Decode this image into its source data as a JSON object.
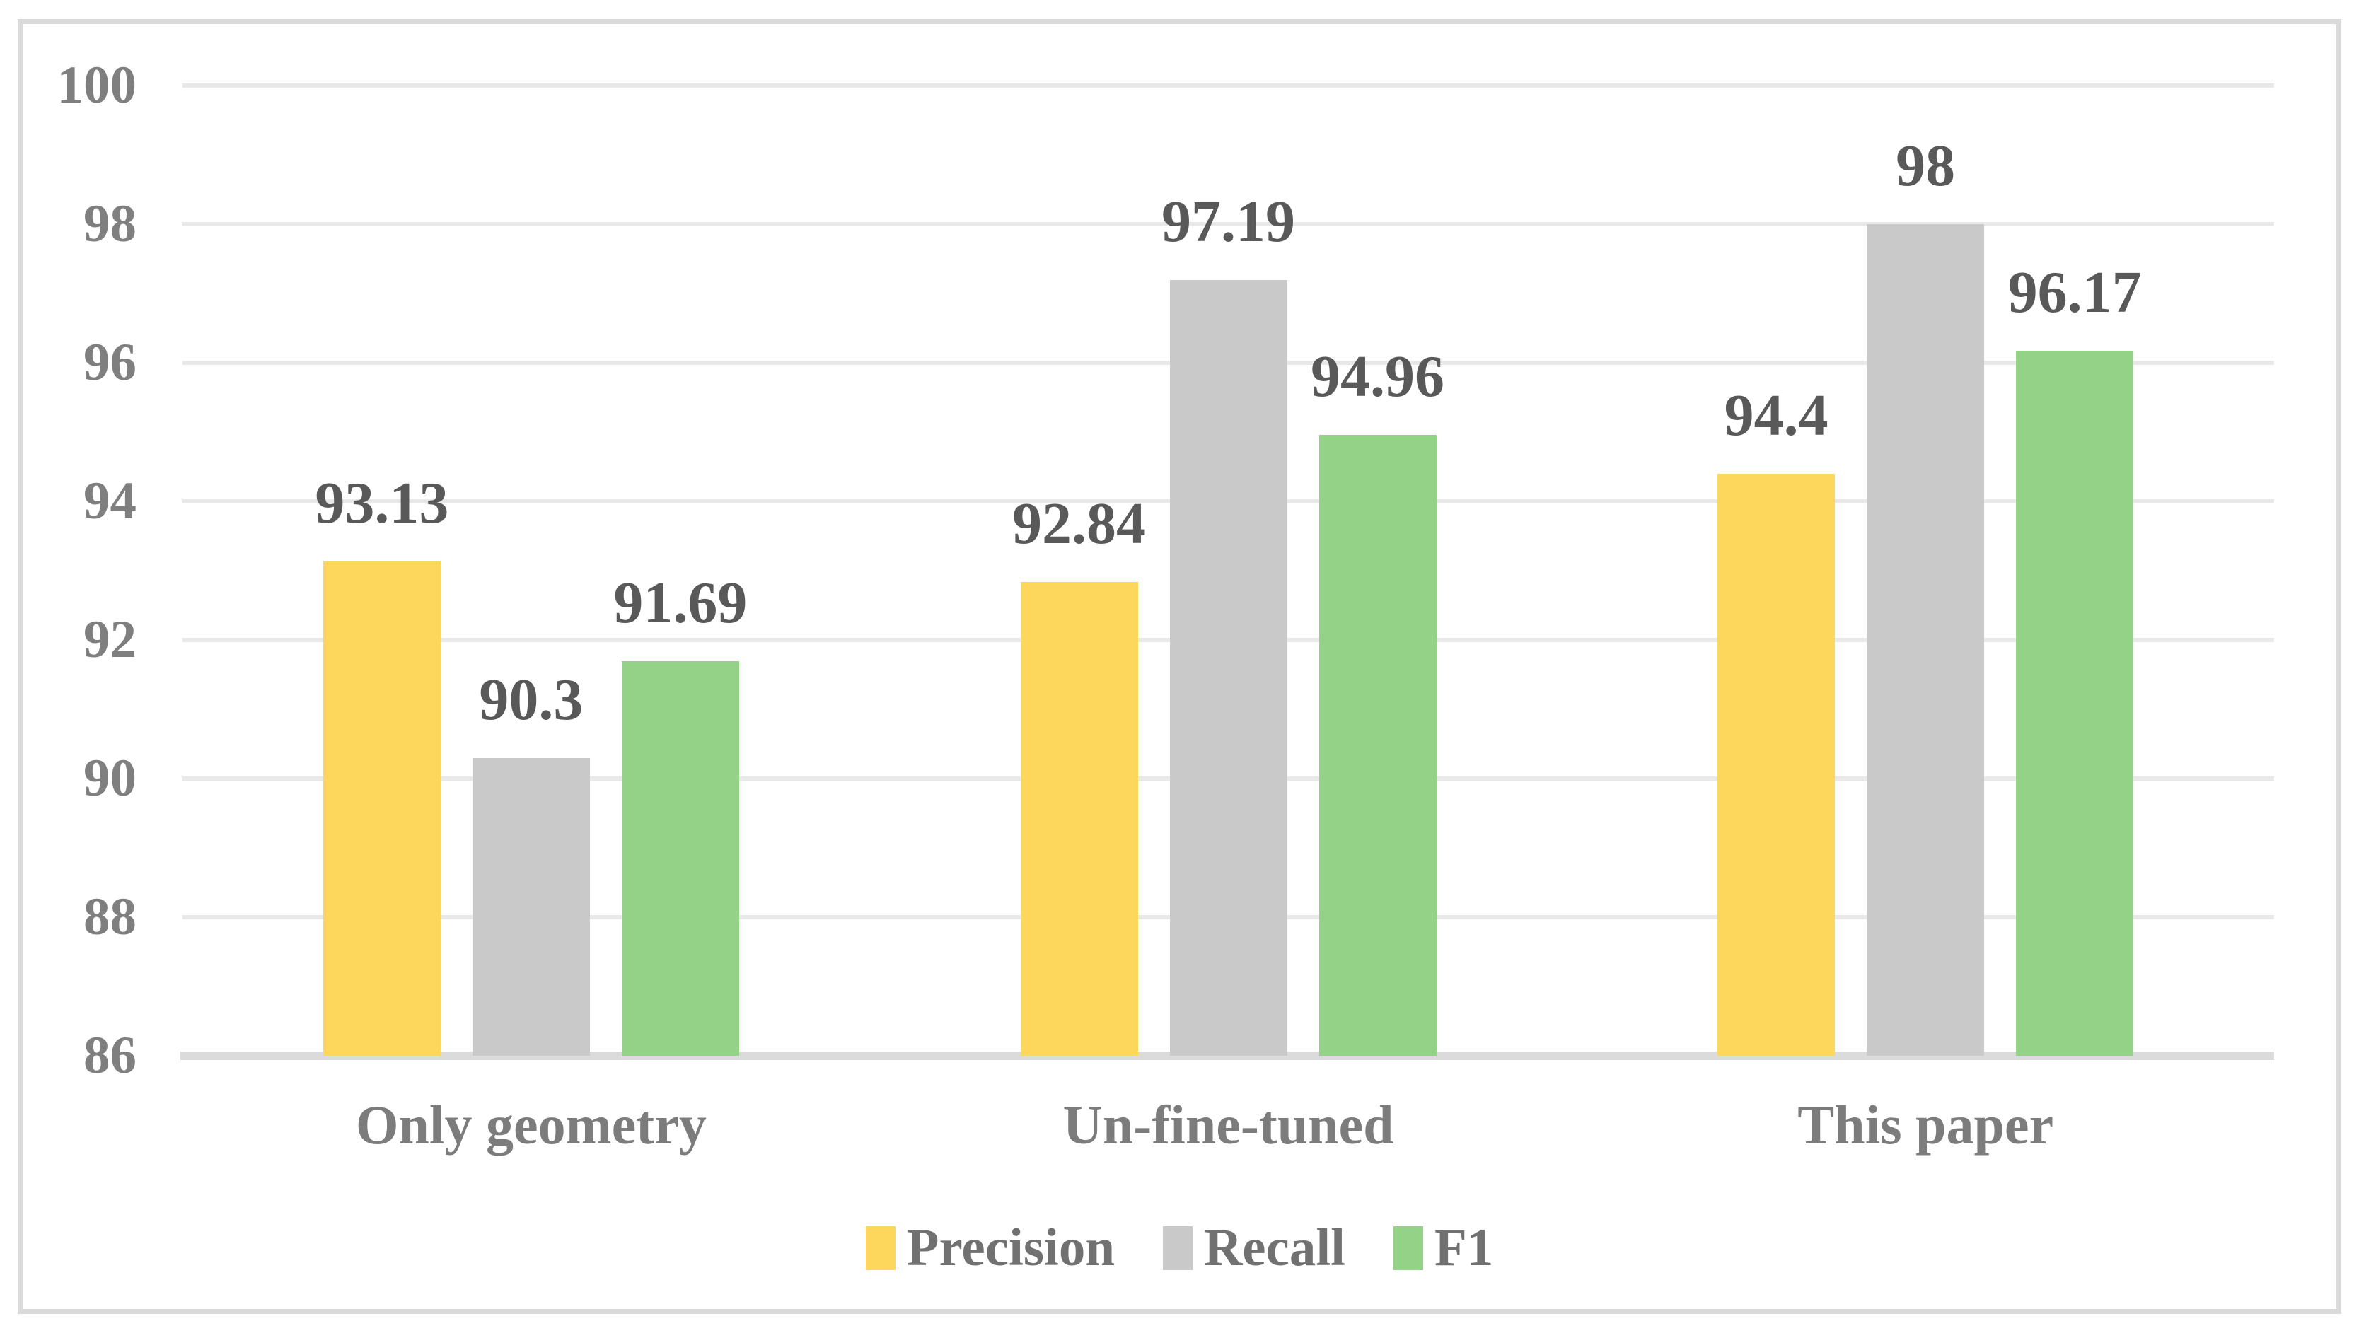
{
  "chart_data": {
    "type": "bar",
    "title": "",
    "xlabel": "",
    "ylabel": "",
    "categories": [
      "Only geometry",
      "Un-fine-tuned",
      "This paper"
    ],
    "series": [
      {
        "name": "Precision",
        "color": "#FDD75B",
        "values": [
          93.13,
          92.84,
          94.4
        ],
        "labels": [
          "93.13",
          "92.84",
          "94.4"
        ]
      },
      {
        "name": "Recall",
        "color": "#C9C9C9",
        "values": [
          90.3,
          97.19,
          98
        ],
        "labels": [
          "90.3",
          "97.19",
          "98"
        ]
      },
      {
        "name": "F1",
        "color": "#93D287",
        "values": [
          91.69,
          94.96,
          96.17
        ],
        "labels": [
          "91.69",
          "94.96",
          "96.17"
        ]
      }
    ],
    "ylim": [
      86,
      100
    ],
    "yticks": [
      86,
      88,
      90,
      92,
      94,
      96,
      98,
      100
    ],
    "grid": "horizontal",
    "legend_position": "bottom-center",
    "data_labels": "above-bars"
  },
  "style": {
    "gridline_color": "#E8E8E8",
    "axis_line_color": "#DBDBDB",
    "frame_color": "#DADADA",
    "tick_text_color": "#7F7F7F",
    "category_text_color": "#7C7C7C",
    "data_label_color": "#595959",
    "legend_text_color": "#717171",
    "background_color": "#FFFFFF"
  }
}
